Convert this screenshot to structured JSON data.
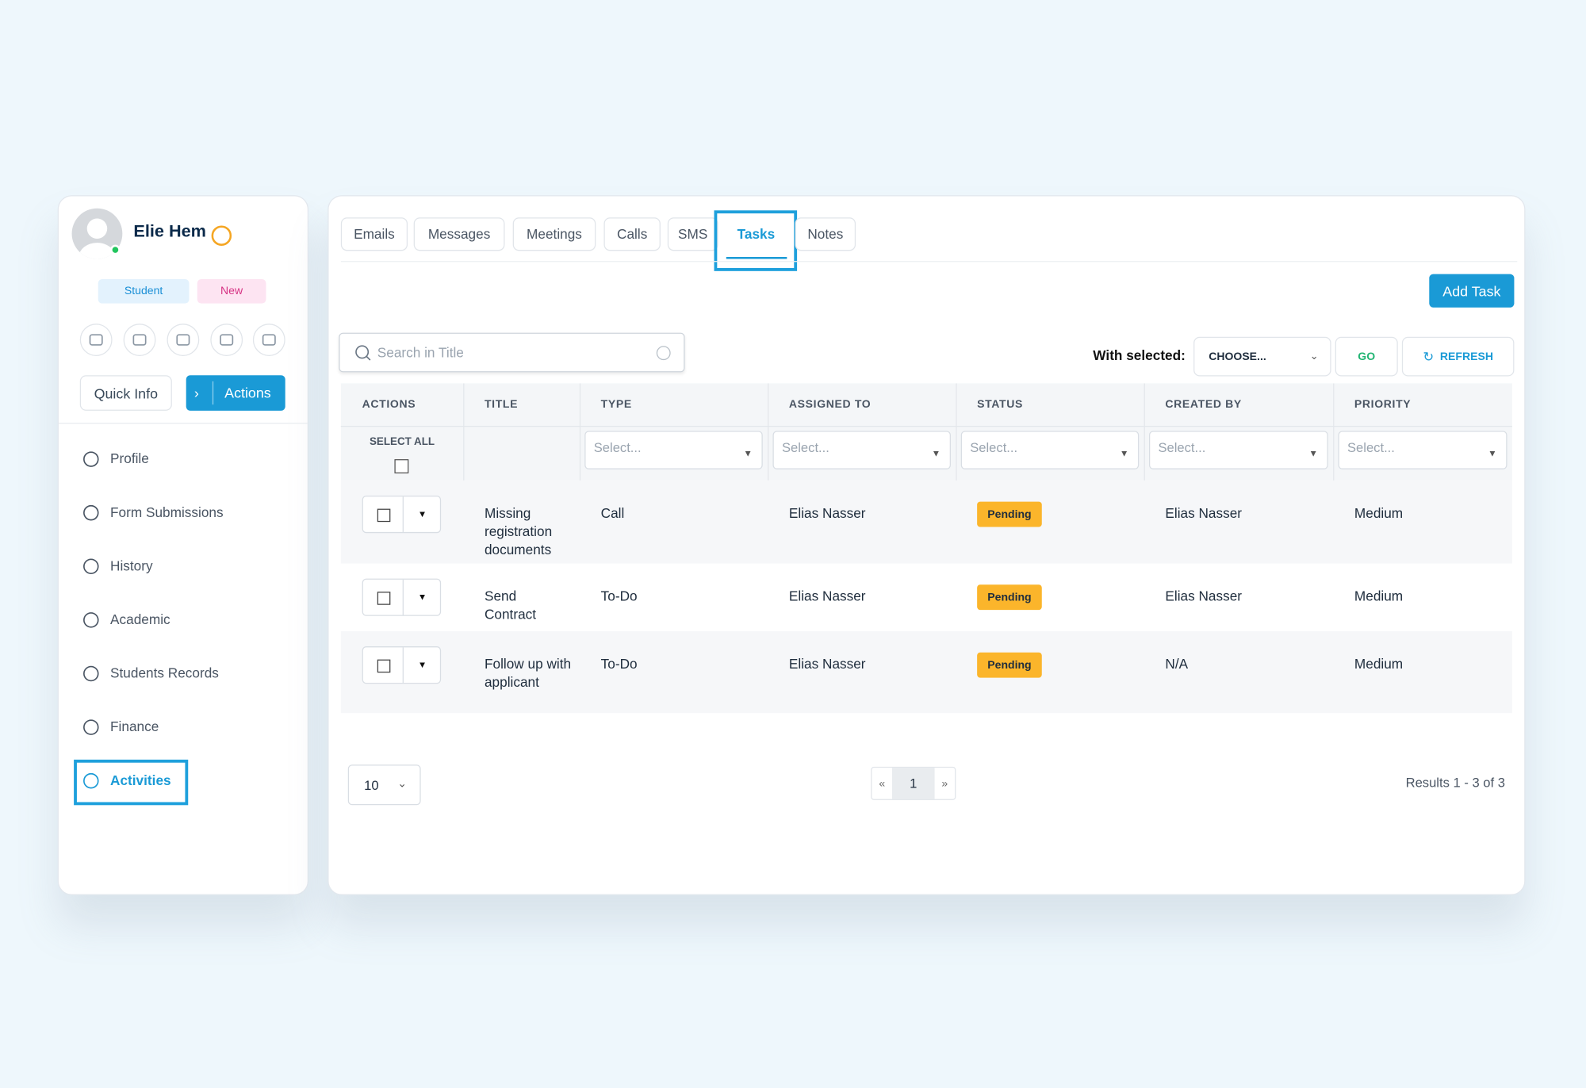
{
  "profile": {
    "name": "Elie Hem",
    "tags": [
      "Student",
      "New"
    ],
    "buttons": [
      "Quick Info",
      "Actions"
    ]
  },
  "nav": [
    {
      "label": "Profile"
    },
    {
      "label": "Form Submissions"
    },
    {
      "label": "History"
    },
    {
      "label": "Academic"
    },
    {
      "label": "Students Records"
    },
    {
      "label": "Finance"
    },
    {
      "label": "Activities",
      "active": true
    }
  ],
  "tabs": [
    {
      "label": "Emails"
    },
    {
      "label": "Messages"
    },
    {
      "label": "Meetings"
    },
    {
      "label": "Calls"
    },
    {
      "label": "SMS"
    },
    {
      "label": "Tasks",
      "active": true
    },
    {
      "label": "Notes"
    }
  ],
  "toolbar": {
    "add_button": "Add Task",
    "search_placeholder": "Search in Title",
    "with_selected": "With selected:",
    "choose": "CHOOSE...",
    "go": "GO",
    "refresh": "REFRESH"
  },
  "table": {
    "columns": [
      "ACTIONS",
      "TITLE",
      "TYPE",
      "ASSIGNED TO",
      "STATUS",
      "CREATED BY",
      "PRIORITY"
    ],
    "select_all": "SELECT ALL",
    "filter_placeholders": [
      "Select...",
      "Select...",
      "Select...",
      "Select...",
      "Select..."
    ],
    "rows": [
      [
        "Missing registration documents",
        "Call",
        "Elias Nasser",
        "Pending",
        "Elias Nasser",
        "Medium"
      ],
      [
        "Send Contract",
        "To-Do",
        "Elias Nasser",
        "Pending",
        "Elias Nasser",
        "Medium"
      ],
      [
        "Follow up with applicant",
        "To-Do",
        "Elias Nasser",
        "Pending",
        "N/A",
        "Medium"
      ]
    ]
  },
  "pagination": {
    "page_size": "10",
    "prev": "«",
    "pages": [
      "1"
    ],
    "next": "»",
    "results": "Results 1 - 3 of 3"
  }
}
